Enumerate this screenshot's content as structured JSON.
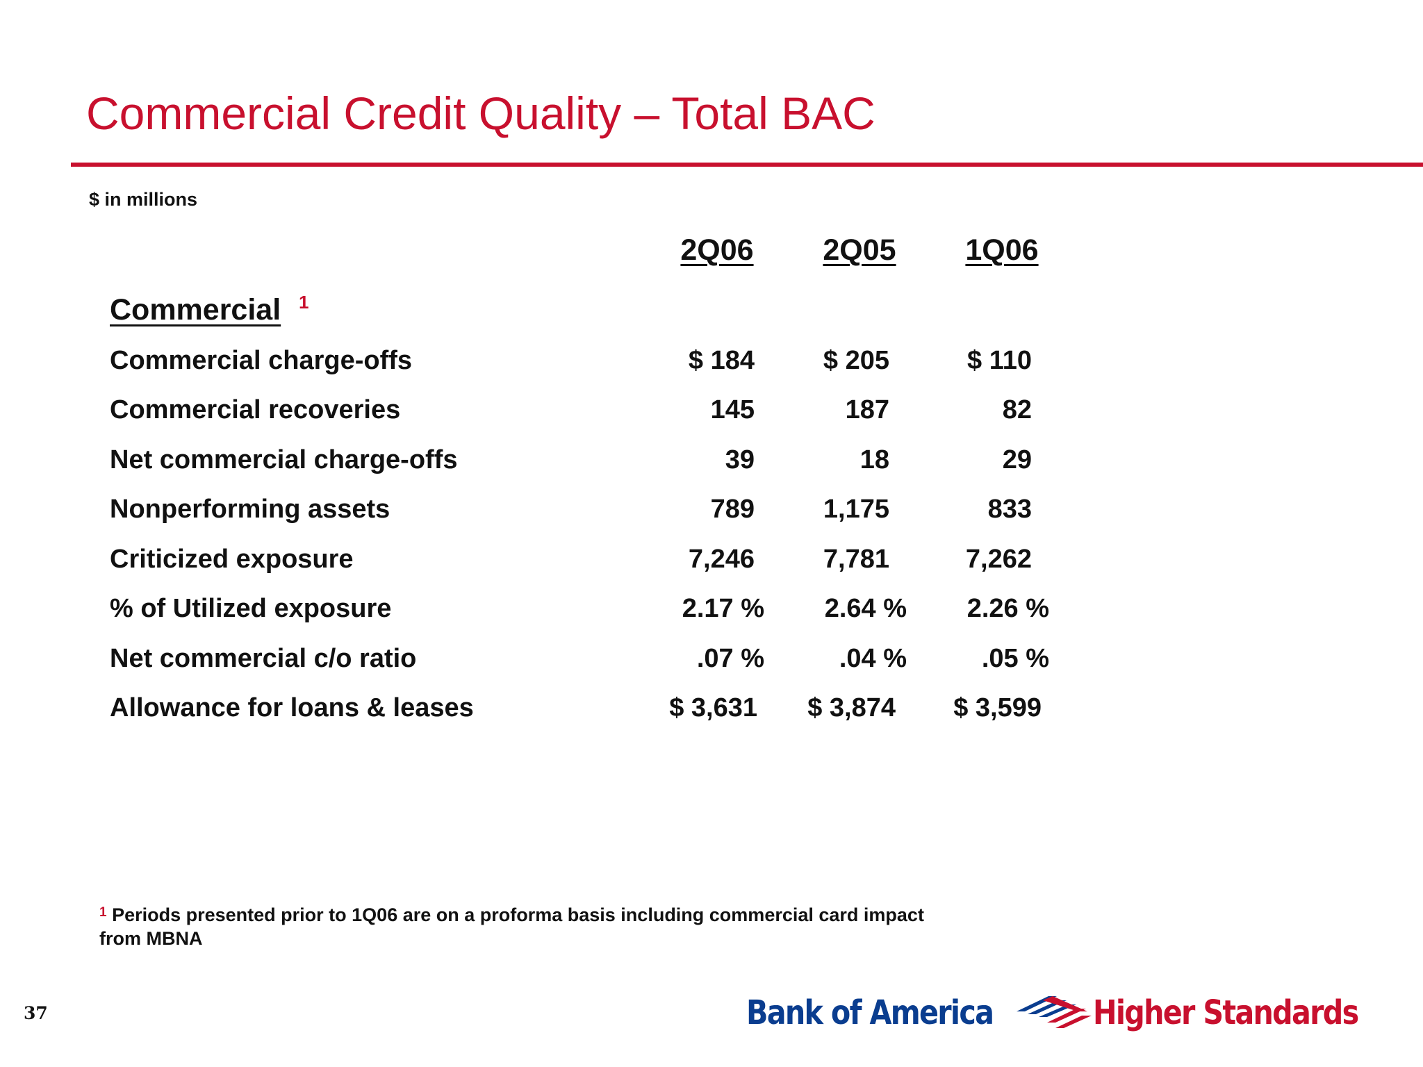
{
  "slide": {
    "title": "Commercial Credit Quality – Total BAC",
    "units_note": "$ in millions",
    "page_number": "37"
  },
  "columns": [
    "2Q06",
    "2Q05",
    "1Q06"
  ],
  "section": {
    "label": "Commercial",
    "footnote_ref": "1"
  },
  "rows": [
    {
      "label": "Commercial charge-offs",
      "values": [
        "$ 184",
        "$ 205",
        "$ 110"
      ]
    },
    {
      "label": "Commercial recoveries",
      "values": [
        "145",
        "187",
        "82"
      ]
    },
    {
      "label": "Net commercial charge-offs",
      "values": [
        "39",
        "18",
        "29"
      ]
    },
    {
      "label": "Nonperforming assets",
      "values": [
        "789",
        "1,175",
        "833"
      ]
    },
    {
      "label": "Criticized exposure",
      "values": [
        "7,246",
        "7,781",
        "7,262"
      ]
    },
    {
      "label": "% of Utilized exposure",
      "values": [
        "2.17 %",
        "2.64 %",
        "2.26 %"
      ]
    },
    {
      "label": "Net commercial c/o ratio",
      "values": [
        ".07 %",
        ".04 %",
        ".05 %"
      ]
    },
    {
      "label": "Allowance for loans & leases",
      "values": [
        "$ 3,631",
        "$ 3,874",
        "$ 3,599"
      ]
    }
  ],
  "footnote": {
    "marker": "1",
    "text": "Periods presented prior to 1Q06 are on a proforma basis including commercial card impact from MBNA"
  },
  "branding": {
    "logo_text": "Bank of America",
    "tagline": "Higher Standards",
    "logo_icon": "bank-of-america-flag-icon",
    "brand_blue": "#0a3d8f",
    "brand_red": "#c8102e"
  }
}
